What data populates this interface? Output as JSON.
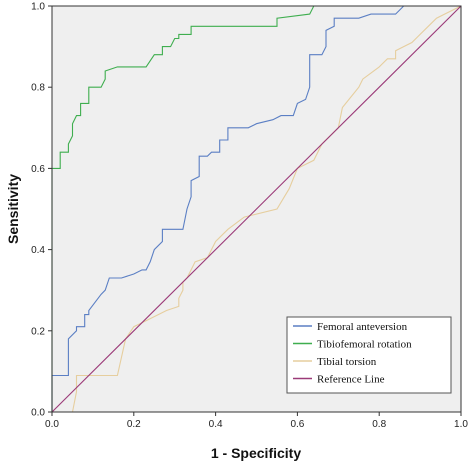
{
  "chart_data": {
    "type": "line",
    "xlabel": "1 - Specificity",
    "ylabel": "Sensitivity",
    "xlim": [
      0.0,
      1.0
    ],
    "ylim": [
      0.0,
      1.0
    ],
    "x_ticks": [
      "0.0",
      "0.2",
      "0.4",
      "0.6",
      "0.8",
      "1.0"
    ],
    "y_ticks": [
      "0.0",
      "0.2",
      "0.4",
      "0.6",
      "0.8",
      "1.0"
    ],
    "grid": false,
    "plot_background": "#efefef",
    "legend_position": "bottom-right",
    "series": [
      {
        "name": "Femoral anteversion",
        "color": "#5b7fc4",
        "x": [
          0.0,
          0.0,
          0.04,
          0.04,
          0.06,
          0.06,
          0.08,
          0.08,
          0.09,
          0.09,
          0.12,
          0.13,
          0.14,
          0.14,
          0.17,
          0.2,
          0.22,
          0.23,
          0.24,
          0.25,
          0.27,
          0.27,
          0.32,
          0.33,
          0.34,
          0.34,
          0.36,
          0.36,
          0.38,
          0.39,
          0.41,
          0.41,
          0.43,
          0.43,
          0.48,
          0.5,
          0.54,
          0.56,
          0.59,
          0.6,
          0.62,
          0.63,
          0.63,
          0.66,
          0.67,
          0.67,
          0.69,
          0.69,
          0.74,
          0.75,
          0.78,
          0.8,
          0.84,
          0.86,
          0.86,
          1.0
        ],
        "y": [
          0.0,
          0.09,
          0.09,
          0.18,
          0.2,
          0.21,
          0.21,
          0.24,
          0.24,
          0.25,
          0.29,
          0.3,
          0.33,
          0.33,
          0.33,
          0.34,
          0.35,
          0.35,
          0.37,
          0.4,
          0.42,
          0.45,
          0.45,
          0.5,
          0.53,
          0.57,
          0.58,
          0.63,
          0.63,
          0.64,
          0.64,
          0.67,
          0.67,
          0.7,
          0.7,
          0.71,
          0.72,
          0.73,
          0.73,
          0.76,
          0.77,
          0.8,
          0.88,
          0.88,
          0.9,
          0.94,
          0.95,
          0.97,
          0.97,
          0.97,
          0.98,
          0.98,
          0.98,
          1.0,
          1.0,
          1.0
        ]
      },
      {
        "name": "Tibiofemoral rotation",
        "color": "#3fae4f",
        "x": [
          0.0,
          0.0,
          0.02,
          0.02,
          0.04,
          0.04,
          0.05,
          0.05,
          0.06,
          0.07,
          0.07,
          0.09,
          0.09,
          0.12,
          0.13,
          0.13,
          0.16,
          0.23,
          0.25,
          0.27,
          0.27,
          0.29,
          0.3,
          0.31,
          0.31,
          0.34,
          0.34,
          0.55,
          0.55,
          0.63,
          0.64,
          1.0
        ],
        "y": [
          0.0,
          0.6,
          0.6,
          0.64,
          0.64,
          0.66,
          0.68,
          0.71,
          0.73,
          0.73,
          0.76,
          0.76,
          0.8,
          0.8,
          0.82,
          0.84,
          0.85,
          0.85,
          0.88,
          0.88,
          0.9,
          0.9,
          0.92,
          0.92,
          0.93,
          0.93,
          0.95,
          0.95,
          0.97,
          0.98,
          1.0,
          1.0
        ]
      },
      {
        "name": "Tibial torsion",
        "color": "#e6ce9e",
        "x": [
          0.0,
          0.05,
          0.06,
          0.06,
          0.16,
          0.18,
          0.2,
          0.22,
          0.26,
          0.28,
          0.31,
          0.31,
          0.32,
          0.32,
          0.33,
          0.34,
          0.35,
          0.38,
          0.4,
          0.43,
          0.47,
          0.55,
          0.58,
          0.6,
          0.64,
          0.66,
          0.7,
          0.71,
          0.75,
          0.76,
          0.8,
          0.82,
          0.84,
          0.84,
          0.86,
          0.88,
          0.9,
          0.92,
          0.94,
          0.96,
          1.0
        ],
        "y": [
          0.0,
          0.0,
          0.05,
          0.09,
          0.09,
          0.18,
          0.21,
          0.22,
          0.24,
          0.25,
          0.26,
          0.28,
          0.3,
          0.32,
          0.33,
          0.35,
          0.37,
          0.38,
          0.42,
          0.45,
          0.48,
          0.5,
          0.55,
          0.6,
          0.62,
          0.66,
          0.7,
          0.75,
          0.8,
          0.82,
          0.85,
          0.87,
          0.87,
          0.89,
          0.9,
          0.91,
          0.93,
          0.95,
          0.97,
          0.98,
          1.0
        ]
      },
      {
        "name": "Reference Line",
        "color": "#9b3a78",
        "x": [
          0.0,
          1.0
        ],
        "y": [
          0.0,
          1.0
        ]
      }
    ]
  }
}
